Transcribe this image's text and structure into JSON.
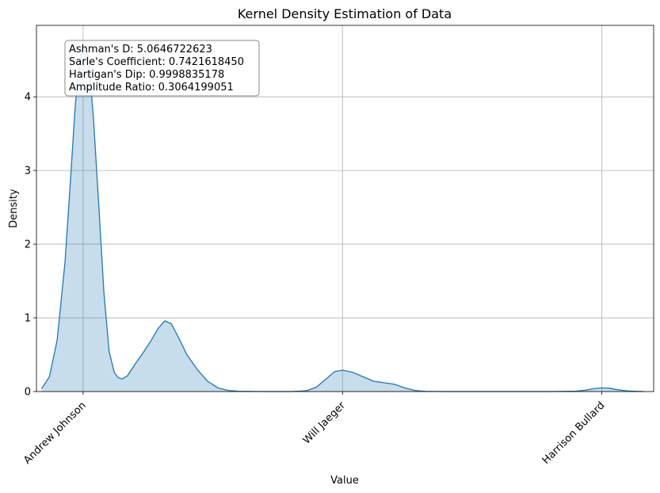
{
  "chart_data": {
    "type": "area",
    "title": "Kernel Density Estimation of Data",
    "xlabel": "Value",
    "ylabel": "Density",
    "xlim": [
      -0.18,
      2.2
    ],
    "ylim": [
      0,
      4.97
    ],
    "grid": true,
    "x_ticks": [
      {
        "value": 0,
        "label": "Andrew Johnson"
      },
      {
        "value": 1,
        "label": "Will Jaeger"
      },
      {
        "value": 2,
        "label": "Harrison Bullard"
      }
    ],
    "y_ticks": [
      0,
      1,
      2,
      3,
      4
    ],
    "series": [
      {
        "color": "#1f77b4",
        "fill_color": "#1f77b4",
        "fill_opacity": 0.25,
        "points": [
          [
            -0.16,
            0.04
          ],
          [
            -0.13,
            0.2
          ],
          [
            -0.1,
            0.7
          ],
          [
            -0.07,
            1.75
          ],
          [
            -0.05,
            2.8
          ],
          [
            -0.03,
            3.9
          ],
          [
            -0.01,
            4.55
          ],
          [
            0.0,
            4.75
          ],
          [
            0.02,
            4.55
          ],
          [
            0.04,
            3.7
          ],
          [
            0.06,
            2.55
          ],
          [
            0.08,
            1.35
          ],
          [
            0.1,
            0.55
          ],
          [
            0.12,
            0.26
          ],
          [
            0.135,
            0.19
          ],
          [
            0.15,
            0.17
          ],
          [
            0.17,
            0.21
          ],
          [
            0.2,
            0.37
          ],
          [
            0.23,
            0.52
          ],
          [
            0.26,
            0.68
          ],
          [
            0.29,
            0.86
          ],
          [
            0.315,
            0.96
          ],
          [
            0.34,
            0.92
          ],
          [
            0.37,
            0.72
          ],
          [
            0.4,
            0.5
          ],
          [
            0.44,
            0.3
          ],
          [
            0.48,
            0.14
          ],
          [
            0.52,
            0.05
          ],
          [
            0.56,
            0.015
          ],
          [
            0.6,
            0.004
          ],
          [
            0.7,
            0.0
          ],
          [
            0.8,
            0.0
          ],
          [
            0.86,
            0.01
          ],
          [
            0.9,
            0.06
          ],
          [
            0.94,
            0.18
          ],
          [
            0.97,
            0.27
          ],
          [
            1.0,
            0.29
          ],
          [
            1.04,
            0.26
          ],
          [
            1.08,
            0.2
          ],
          [
            1.12,
            0.14
          ],
          [
            1.16,
            0.12
          ],
          [
            1.2,
            0.1
          ],
          [
            1.24,
            0.05
          ],
          [
            1.28,
            0.015
          ],
          [
            1.32,
            0.003
          ],
          [
            1.4,
            0.0
          ],
          [
            1.6,
            0.0
          ],
          [
            1.8,
            0.0
          ],
          [
            1.9,
            0.005
          ],
          [
            1.94,
            0.02
          ],
          [
            1.97,
            0.04
          ],
          [
            2.0,
            0.05
          ],
          [
            2.03,
            0.045
          ],
          [
            2.06,
            0.025
          ],
          [
            2.1,
            0.008
          ],
          [
            2.14,
            0.002
          ],
          [
            2.16,
            0.0
          ]
        ]
      }
    ],
    "annotations": [
      "Ashman's D: 5.0646722623",
      "Sarle's Coefficient: 0.7421618450",
      "Hartigan's Dip: 0.9998835178",
      "Amplitude Ratio: 0.3064199051"
    ]
  }
}
